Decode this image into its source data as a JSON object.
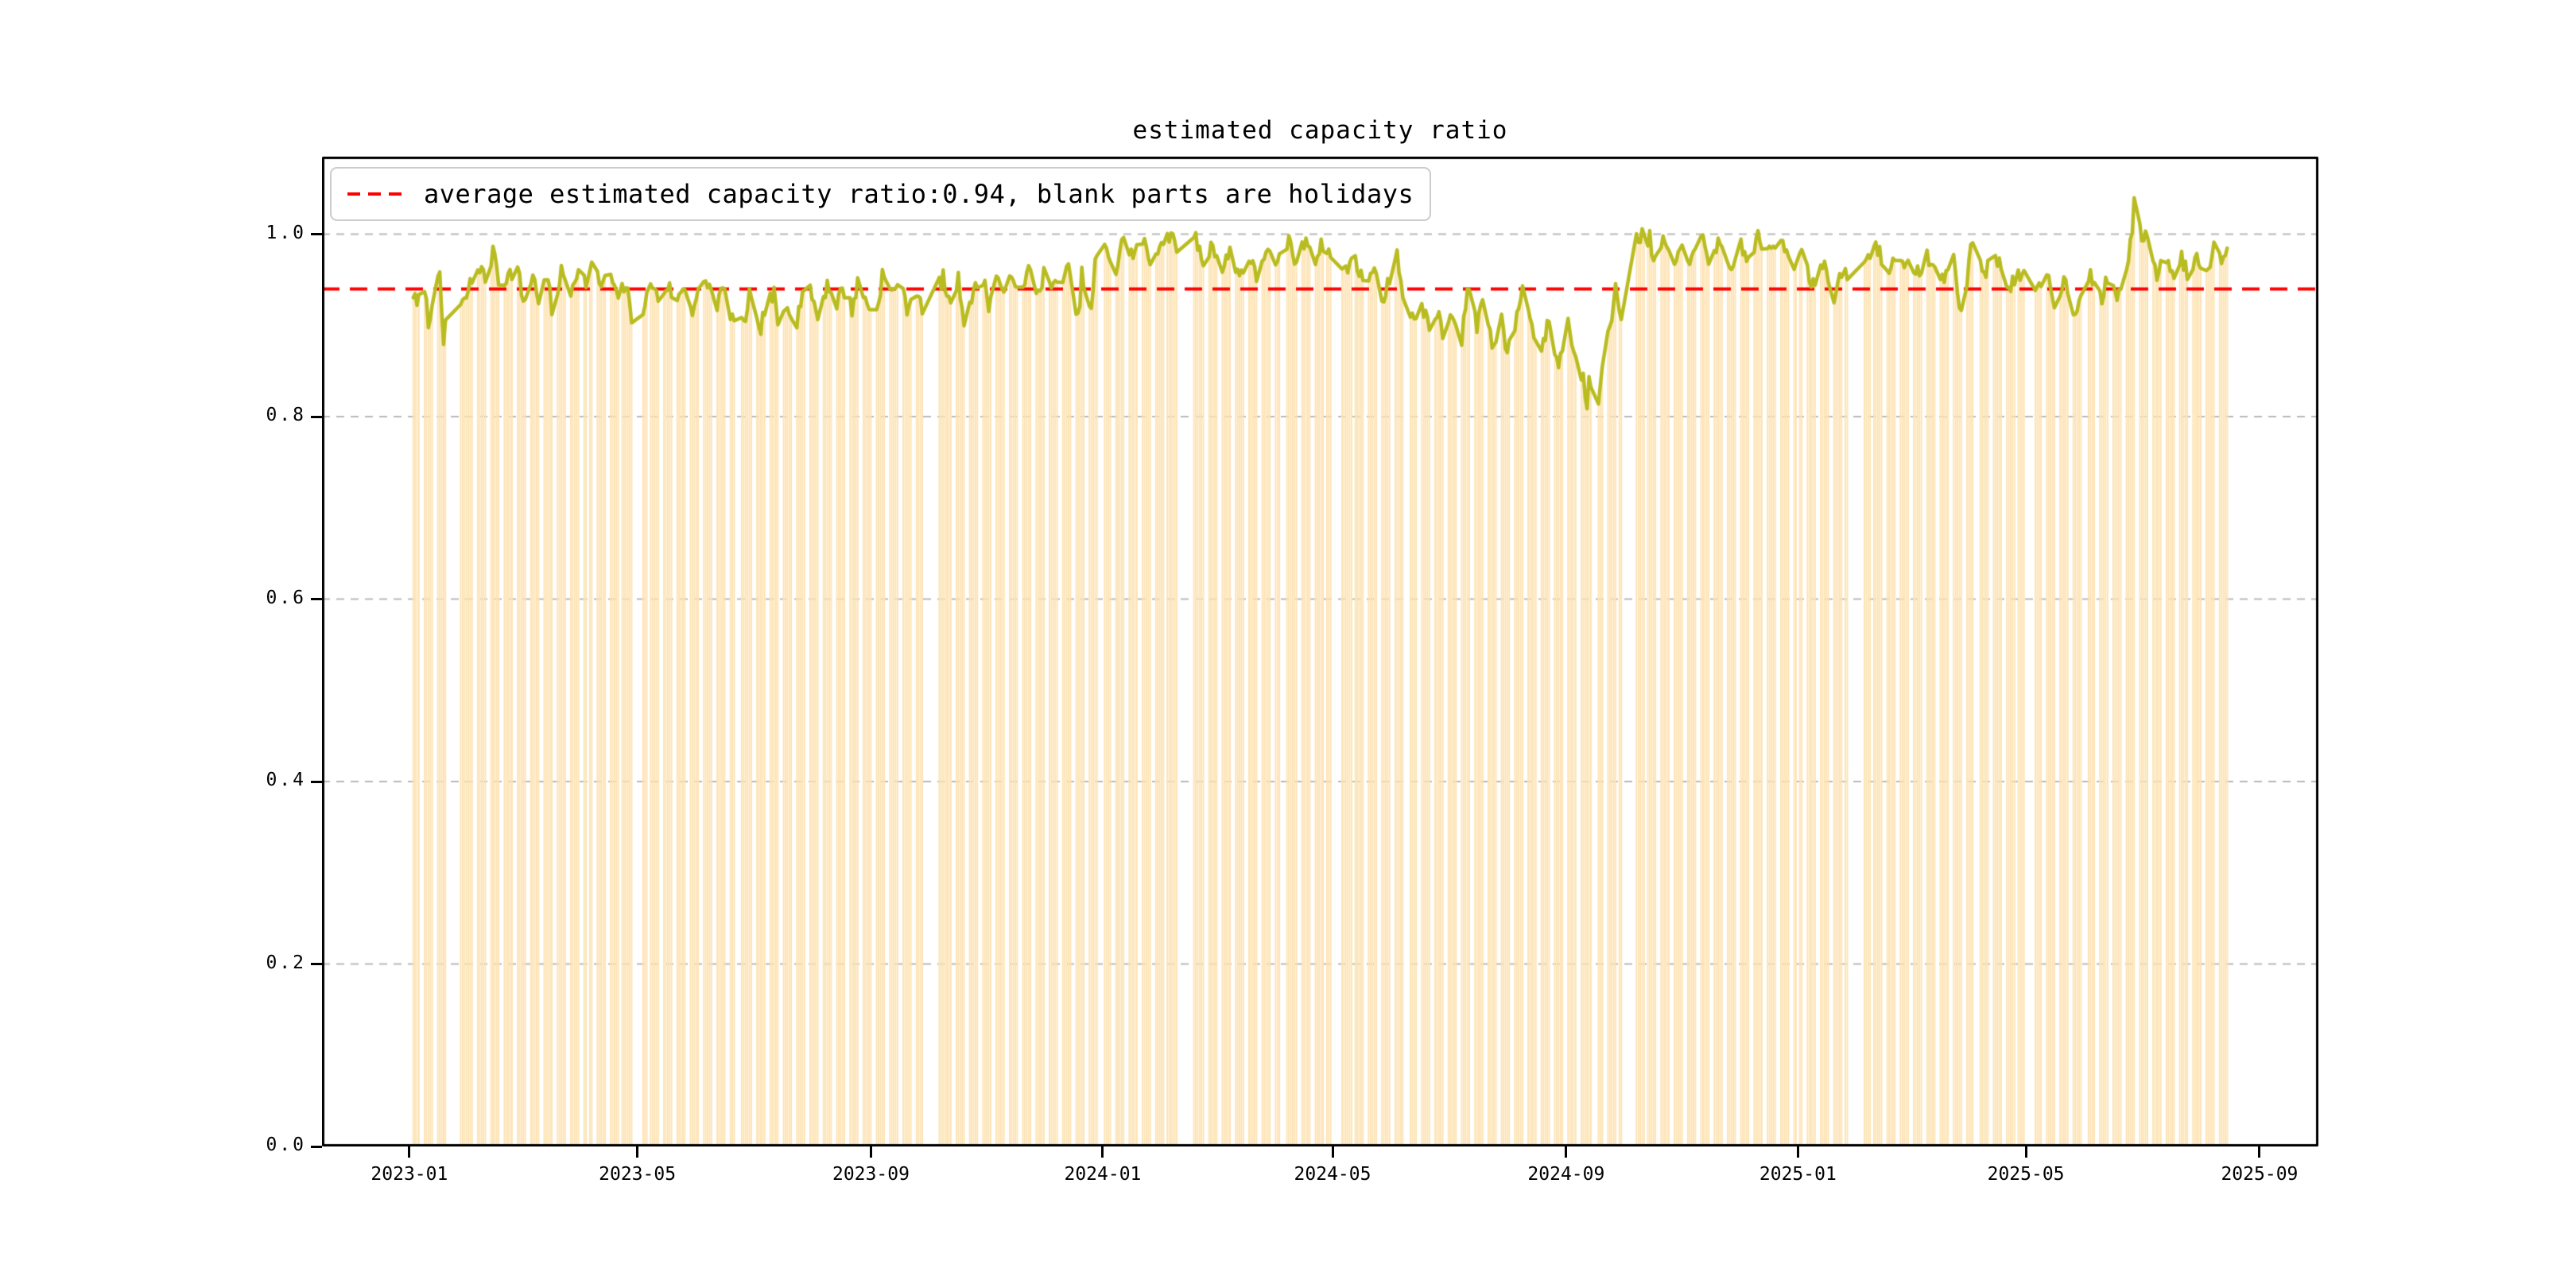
{
  "chart_data": {
    "type": "bar+line",
    "title": "estimated capacity ratio",
    "legend_label": "average estimated capacity ratio:0.94, blank parts are holidays",
    "average_line": {
      "value": 0.94,
      "color": "#ff0000",
      "style": "dashed"
    },
    "x_axis": {
      "domain_min": "2022-11-16",
      "domain_max": "2025-10-02",
      "ticks": [
        {
          "label": "2023-01",
          "date": "2023-01-01"
        },
        {
          "label": "2023-05",
          "date": "2023-05-01"
        },
        {
          "label": "2023-09",
          "date": "2023-09-01"
        },
        {
          "label": "2024-01",
          "date": "2024-01-01"
        },
        {
          "label": "2024-05",
          "date": "2024-05-01"
        },
        {
          "label": "2024-09",
          "date": "2024-09-01"
        },
        {
          "label": "2025-01",
          "date": "2025-01-01"
        },
        {
          "label": "2025-05",
          "date": "2025-05-01"
        },
        {
          "label": "2025-09",
          "date": "2025-09-01"
        }
      ]
    },
    "y_axis": {
      "min": 0.0,
      "max": 1.085,
      "grid": true,
      "ticks": [
        {
          "label": "0.0",
          "value": 0.0
        },
        {
          "label": "0.2",
          "value": 0.2
        },
        {
          "label": "0.4",
          "value": 0.4
        },
        {
          "label": "0.6",
          "value": 0.6
        },
        {
          "label": "0.8",
          "value": 0.8
        },
        {
          "label": "1.0",
          "value": 1.0
        }
      ]
    },
    "colors": {
      "bar": "#fde3b4",
      "line": "#b9bc20",
      "average": "#ff0000",
      "grid": "#b8b8b8",
      "spine": "#000000"
    },
    "series": {
      "name": "estimated capacity ratio",
      "frequency": "workdays",
      "start_date": "2023-01-03",
      "end_date": "2025-08-15",
      "noise_amplitude": 0.009,
      "noise_seed": 7,
      "control_points": [
        [
          "2023-01-03",
          0.935
        ],
        [
          "2023-01-05",
          0.92
        ],
        [
          "2023-01-09",
          0.945
        ],
        [
          "2023-01-11",
          0.9
        ],
        [
          "2023-01-13",
          0.93
        ],
        [
          "2023-01-17",
          0.95
        ],
        [
          "2023-01-19",
          0.88
        ],
        [
          "2023-01-20",
          0.905
        ],
        [
          "2023-01-30",
          0.925
        ],
        [
          "2023-02-02",
          0.945
        ],
        [
          "2023-02-07",
          0.965
        ],
        [
          "2023-02-10",
          0.95
        ],
        [
          "2023-02-15",
          0.985
        ],
        [
          "2023-02-17",
          0.945
        ],
        [
          "2023-02-22",
          0.955
        ],
        [
          "2023-02-27",
          0.962
        ],
        [
          "2023-03-02",
          0.925
        ],
        [
          "2023-03-07",
          0.955
        ],
        [
          "2023-03-10",
          0.93
        ],
        [
          "2023-03-15",
          0.952
        ],
        [
          "2023-03-17",
          0.912
        ],
        [
          "2023-03-22",
          0.958
        ],
        [
          "2023-03-27",
          0.938
        ],
        [
          "2023-03-30",
          0.96
        ],
        [
          "2023-04-04",
          0.948
        ],
        [
          "2023-04-07",
          0.965
        ],
        [
          "2023-04-12",
          0.944
        ],
        [
          "2023-04-17",
          0.956
        ],
        [
          "2023-04-20",
          0.93
        ],
        [
          "2023-04-25",
          0.945
        ],
        [
          "2023-04-28",
          0.908
        ],
        [
          "2023-05-04",
          0.92
        ],
        [
          "2023-05-09",
          0.946
        ],
        [
          "2023-05-12",
          0.928
        ],
        [
          "2023-05-17",
          0.944
        ],
        [
          "2023-05-22",
          0.924
        ],
        [
          "2023-05-25",
          0.944
        ],
        [
          "2023-05-30",
          0.918
        ],
        [
          "2023-06-02",
          0.935
        ],
        [
          "2023-06-07",
          0.946
        ],
        [
          "2023-06-12",
          0.924
        ],
        [
          "2023-06-15",
          0.94
        ],
        [
          "2023-06-20",
          0.908
        ],
        [
          "2023-06-26",
          0.898
        ],
        [
          "2023-06-29",
          0.934
        ],
        [
          "2023-07-04",
          0.89
        ],
        [
          "2023-07-07",
          0.916
        ],
        [
          "2023-07-12",
          0.934
        ],
        [
          "2023-07-14",
          0.898
        ],
        [
          "2023-07-19",
          0.925
        ],
        [
          "2023-07-24",
          0.904
        ],
        [
          "2023-07-27",
          0.94
        ],
        [
          "2023-08-01",
          0.934
        ],
        [
          "2023-08-04",
          0.908
        ],
        [
          "2023-08-09",
          0.946
        ],
        [
          "2023-08-14",
          0.924
        ],
        [
          "2023-08-17",
          0.942
        ],
        [
          "2023-08-22",
          0.918
        ],
        [
          "2023-08-25",
          0.946
        ],
        [
          "2023-08-30",
          0.924
        ],
        [
          "2023-09-04",
          0.914
        ],
        [
          "2023-09-07",
          0.956
        ],
        [
          "2023-09-12",
          0.934
        ],
        [
          "2023-09-15",
          0.95
        ],
        [
          "2023-09-20",
          0.92
        ],
        [
          "2023-09-25",
          0.94
        ],
        [
          "2023-09-28",
          0.914
        ],
        [
          "2023-10-09",
          0.952
        ],
        [
          "2023-10-12",
          0.924
        ],
        [
          "2023-10-17",
          0.95
        ],
        [
          "2023-10-20",
          0.908
        ],
        [
          "2023-10-25",
          0.936
        ],
        [
          "2023-10-30",
          0.952
        ],
        [
          "2023-11-02",
          0.924
        ],
        [
          "2023-11-07",
          0.956
        ],
        [
          "2023-11-10",
          0.93
        ],
        [
          "2023-11-15",
          0.956
        ],
        [
          "2023-11-20",
          0.934
        ],
        [
          "2023-11-23",
          0.962
        ],
        [
          "2023-11-28",
          0.936
        ],
        [
          "2023-12-01",
          0.956
        ],
        [
          "2023-12-06",
          0.94
        ],
        [
          "2023-12-11",
          0.956
        ],
        [
          "2023-12-14",
          0.96
        ],
        [
          "2023-12-19",
          0.905
        ],
        [
          "2023-12-21",
          0.955
        ],
        [
          "2023-12-26",
          0.912
        ],
        [
          "2023-12-28",
          0.97
        ],
        [
          "2024-01-03",
          0.985
        ],
        [
          "2024-01-08",
          0.958
        ],
        [
          "2024-01-12",
          0.998
        ],
        [
          "2024-01-17",
          0.975
        ],
        [
          "2024-01-22",
          0.995
        ],
        [
          "2024-01-26",
          0.968
        ],
        [
          "2024-01-31",
          0.99
        ],
        [
          "2024-02-05",
          0.999
        ],
        [
          "2024-02-08",
          0.988
        ],
        [
          "2024-02-19",
          0.995
        ],
        [
          "2024-02-23",
          0.968
        ],
        [
          "2024-02-28",
          0.99
        ],
        [
          "2024-03-04",
          0.96
        ],
        [
          "2024-03-08",
          0.982
        ],
        [
          "2024-03-13",
          0.955
        ],
        [
          "2024-03-18",
          0.975
        ],
        [
          "2024-03-22",
          0.952
        ],
        [
          "2024-03-27",
          0.985
        ],
        [
          "2024-04-01",
          0.96
        ],
        [
          "2024-04-08",
          0.995
        ],
        [
          "2024-04-12",
          0.965
        ],
        [
          "2024-04-17",
          0.996
        ],
        [
          "2024-04-22",
          0.975
        ],
        [
          "2024-04-26",
          0.99
        ],
        [
          "2024-04-30",
          0.975
        ],
        [
          "2024-05-08",
          0.96
        ],
        [
          "2024-05-13",
          0.976
        ],
        [
          "2024-05-17",
          0.945
        ],
        [
          "2024-05-22",
          0.962
        ],
        [
          "2024-05-28",
          0.93
        ],
        [
          "2024-05-31",
          0.95
        ],
        [
          "2024-06-04",
          0.985
        ],
        [
          "2024-06-07",
          0.928
        ],
        [
          "2024-06-12",
          0.905
        ],
        [
          "2024-06-17",
          0.925
        ],
        [
          "2024-06-21",
          0.895
        ],
        [
          "2024-06-25",
          0.915
        ],
        [
          "2024-06-28",
          0.89
        ],
        [
          "2024-07-03",
          0.912
        ],
        [
          "2024-07-08",
          0.878
        ],
        [
          "2024-07-11",
          0.945
        ],
        [
          "2024-07-16",
          0.898
        ],
        [
          "2024-07-19",
          0.935
        ],
        [
          "2024-07-24",
          0.878
        ],
        [
          "2024-07-29",
          0.908
        ],
        [
          "2024-08-01",
          0.868
        ],
        [
          "2024-08-06",
          0.908
        ],
        [
          "2024-08-09",
          0.945
        ],
        [
          "2024-08-14",
          0.898
        ],
        [
          "2024-08-19",
          0.874
        ],
        [
          "2024-08-23",
          0.905
        ],
        [
          "2024-08-28",
          0.855
        ],
        [
          "2024-09-02",
          0.908
        ],
        [
          "2024-09-05",
          0.868
        ],
        [
          "2024-09-10",
          0.842
        ],
        [
          "2024-09-12",
          0.815
        ],
        [
          "2024-09-13",
          0.845
        ],
        [
          "2024-09-18",
          0.822
        ],
        [
          "2024-09-20",
          0.862
        ],
        [
          "2024-09-24",
          0.895
        ],
        [
          "2024-09-27",
          0.938
        ],
        [
          "2024-09-30",
          0.912
        ],
        [
          "2024-10-08",
          0.998
        ],
        [
          "2024-10-11",
          0.998
        ],
        [
          "2024-10-15",
          0.995
        ],
        [
          "2024-10-17",
          0.964
        ],
        [
          "2024-10-22",
          0.995
        ],
        [
          "2024-10-28",
          0.958
        ],
        [
          "2024-11-01",
          0.995
        ],
        [
          "2024-11-06",
          0.968
        ],
        [
          "2024-11-11",
          0.998
        ],
        [
          "2024-11-15",
          0.974
        ],
        [
          "2024-11-20",
          0.99
        ],
        [
          "2024-11-26",
          0.955
        ],
        [
          "2024-12-02",
          0.99
        ],
        [
          "2024-12-06",
          0.968
        ],
        [
          "2024-12-11",
          0.998
        ],
        [
          "2024-12-17",
          0.978
        ],
        [
          "2024-12-23",
          0.995
        ],
        [
          "2024-12-30",
          0.968
        ],
        [
          "2025-01-03",
          0.988
        ],
        [
          "2025-01-08",
          0.944
        ],
        [
          "2025-01-14",
          0.97
        ],
        [
          "2025-01-20",
          0.928
        ],
        [
          "2025-01-24",
          0.955
        ],
        [
          "2025-02-05",
          0.965
        ],
        [
          "2025-02-11",
          0.99
        ],
        [
          "2025-02-17",
          0.958
        ],
        [
          "2025-02-24",
          0.98
        ],
        [
          "2025-03-03",
          0.95
        ],
        [
          "2025-03-10",
          0.976
        ],
        [
          "2025-03-17",
          0.948
        ],
        [
          "2025-03-24",
          0.975
        ],
        [
          "2025-03-27",
          0.915
        ],
        [
          "2025-03-31",
          0.95
        ],
        [
          "2025-04-03",
          0.995
        ],
        [
          "2025-04-09",
          0.958
        ],
        [
          "2025-04-15",
          0.976
        ],
        [
          "2025-04-22",
          0.944
        ],
        [
          "2025-04-28",
          0.956
        ],
        [
          "2025-05-07",
          0.935
        ],
        [
          "2025-05-12",
          0.956
        ],
        [
          "2025-05-16",
          0.924
        ],
        [
          "2025-05-21",
          0.95
        ],
        [
          "2025-05-27",
          0.914
        ],
        [
          "2025-05-30",
          0.94
        ],
        [
          "2025-06-04",
          0.955
        ],
        [
          "2025-06-10",
          0.924
        ],
        [
          "2025-06-13",
          0.955
        ],
        [
          "2025-06-18",
          0.93
        ],
        [
          "2025-06-23",
          0.962
        ],
        [
          "2025-06-26",
          1.005
        ],
        [
          "2025-06-27",
          1.035
        ],
        [
          "2025-06-30",
          1.012
        ],
        [
          "2025-07-02",
          0.985
        ],
        [
          "2025-07-04",
          1.005
        ],
        [
          "2025-07-09",
          0.955
        ],
        [
          "2025-07-14",
          0.976
        ],
        [
          "2025-07-17",
          0.954
        ],
        [
          "2025-07-22",
          0.976
        ],
        [
          "2025-07-25",
          0.955
        ],
        [
          "2025-07-30",
          0.976
        ],
        [
          "2025-08-04",
          0.96
        ],
        [
          "2025-08-08",
          0.985
        ],
        [
          "2025-08-12",
          0.975
        ],
        [
          "2025-08-15",
          0.99
        ]
      ]
    },
    "holidays": [
      [
        "2023-01-02",
        "2023-01-02"
      ],
      [
        "2023-01-21",
        "2023-01-27"
      ],
      [
        "2023-04-05",
        "2023-04-05"
      ],
      [
        "2023-04-29",
        "2023-05-03"
      ],
      [
        "2023-06-22",
        "2023-06-23"
      ],
      [
        "2023-09-29",
        "2023-10-06"
      ],
      [
        "2024-01-01",
        "2024-01-01"
      ],
      [
        "2024-02-10",
        "2024-02-17"
      ],
      [
        "2024-04-04",
        "2024-04-05"
      ],
      [
        "2024-05-01",
        "2024-05-03"
      ],
      [
        "2024-06-10",
        "2024-06-10"
      ],
      [
        "2024-09-16",
        "2024-09-17"
      ],
      [
        "2024-10-01",
        "2024-10-07"
      ],
      [
        "2025-01-01",
        "2025-01-01"
      ],
      [
        "2025-01-28",
        "2025-02-04"
      ],
      [
        "2025-04-04",
        "2025-04-04"
      ],
      [
        "2025-05-01",
        "2025-05-05"
      ],
      [
        "2025-06-02",
        "2025-06-02"
      ]
    ],
    "makeup_workdays": [
      "2023-01-28",
      "2023-01-29",
      "2023-04-23",
      "2023-05-06",
      "2023-06-25",
      "2023-10-07",
      "2023-10-08",
      "2024-02-04",
      "2024-02-18",
      "2024-04-07",
      "2024-04-28",
      "2024-05-11",
      "2024-09-14",
      "2024-09-29",
      "2024-10-12",
      "2025-01-26",
      "2025-02-08",
      "2025-04-27"
    ]
  }
}
